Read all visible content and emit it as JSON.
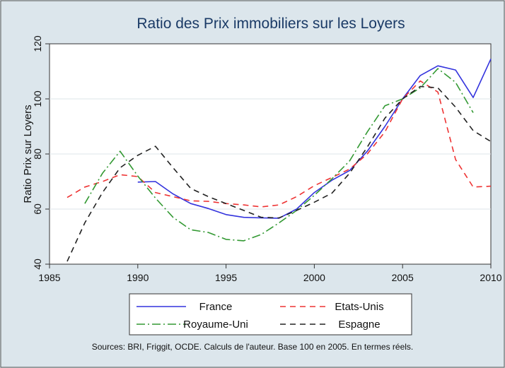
{
  "chart_data": {
    "type": "line",
    "title": "Ratio des Prix immobiliers sur les Loyers",
    "ylabel": "Ratio Prix sur Loyers",
    "xlabel": "",
    "xlim": [
      1985,
      2010
    ],
    "ylim": [
      40,
      120
    ],
    "xticks": [
      1985,
      1990,
      1995,
      2000,
      2005,
      2010
    ],
    "yticks": [
      40,
      60,
      80,
      100,
      120
    ],
    "grid": "horizontal",
    "legend_position": "bottom",
    "note": "Sources: BRI, Friggit, OCDE. Calculs de l'auteur. Base 100 en 2005. En termes réels.",
    "series": [
      {
        "name": "France",
        "color": "#3333dd",
        "dash": "solid",
        "x": [
          1990,
          1991,
          1992,
          1993,
          1994,
          1995,
          1996,
          1997,
          1998,
          1999,
          2000,
          2001,
          2002,
          2003,
          2004,
          2005,
          2006,
          2007,
          2008,
          2009,
          2010
        ],
        "values": [
          69.8,
          70.0,
          65.5,
          62.0,
          60.2,
          58.0,
          57.0,
          56.8,
          56.7,
          60.0,
          66.0,
          70.5,
          74.0,
          81.0,
          90.0,
          100.0,
          108.5,
          112.0,
          110.5,
          100.5,
          114.5
        ]
      },
      {
        "name": "Etats-Unis",
        "color": "#ee3333",
        "dash": "8,6",
        "x": [
          1986,
          1987,
          1988,
          1989,
          1990,
          1991,
          1992,
          1993,
          1994,
          1995,
          1996,
          1997,
          1998,
          1999,
          2000,
          2001,
          2002,
          2003,
          2004,
          2005,
          2006,
          2007,
          2008,
          2009,
          2010
        ],
        "values": [
          64.2,
          68.0,
          70.0,
          72.5,
          71.8,
          66.0,
          64.5,
          63.0,
          62.8,
          62.0,
          61.5,
          60.8,
          61.5,
          64.5,
          68.5,
          71.5,
          74.5,
          80.0,
          88.0,
          100.0,
          106.5,
          102.5,
          78.0,
          68.0,
          68.3
        ]
      },
      {
        "name": "Royaume-Uni",
        "color": "#339933",
        "dash": "12,4,2,4",
        "x": [
          1987,
          1988,
          1989,
          1990,
          1991,
          1992,
          1993,
          1994,
          1995,
          1996,
          1997,
          1998,
          1999,
          2000,
          2001,
          2002,
          2003,
          2004,
          2005,
          2006,
          2007,
          2008,
          2009
        ],
        "values": [
          62.0,
          73.0,
          81.0,
          72.0,
          64.0,
          57.0,
          52.5,
          51.5,
          49.0,
          48.5,
          50.8,
          55.0,
          59.5,
          65.0,
          71.0,
          77.5,
          88.0,
          97.5,
          100.0,
          104.0,
          111.0,
          106.0,
          95.0
        ]
      },
      {
        "name": "Espagne",
        "color": "#222222",
        "dash": "8,6",
        "x": [
          1986,
          1987,
          1988,
          1989,
          1990,
          1991,
          1992,
          1993,
          1994,
          1995,
          1996,
          1997,
          1998,
          1999,
          2000,
          2001,
          2002,
          2003,
          2004,
          2005,
          2006,
          2007,
          2008,
          2009,
          2010
        ],
        "values": [
          41.0,
          55.0,
          66.0,
          75.0,
          79.5,
          82.8,
          75.0,
          67.5,
          64.5,
          62.0,
          59.5,
          57.0,
          56.8,
          59.5,
          62.5,
          65.8,
          73.0,
          82.5,
          93.0,
          100.0,
          104.5,
          104.0,
          97.0,
          88.5,
          84.5
        ]
      }
    ]
  }
}
